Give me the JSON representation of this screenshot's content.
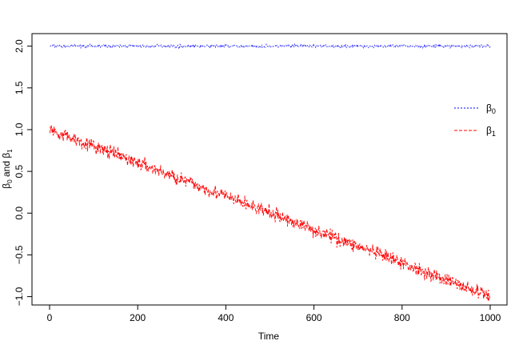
{
  "chart_data": {
    "type": "line",
    "title": "",
    "xlabel": "Time",
    "ylabel": "β0 and β1",
    "xlim": [
      0,
      1000
    ],
    "ylim": [
      -1.1,
      2.15
    ],
    "x_ticks": [
      0,
      200,
      400,
      600,
      800,
      1000
    ],
    "y_ticks": [
      -1.0,
      -0.5,
      0.0,
      0.5,
      1.0,
      1.5,
      2.0
    ],
    "x_tick_labels": [
      "0",
      "200",
      "400",
      "600",
      "800",
      "1000"
    ],
    "y_tick_labels": [
      "−1.0",
      "−0.5",
      "0.0",
      "0.5",
      "1.0",
      "1.5",
      "2.0"
    ],
    "legend_position": "right",
    "grid": false,
    "series": [
      {
        "name": "β0",
        "color": "#0000ff",
        "line_style": "dashed",
        "noise": 0.012,
        "x": [
          1,
          1000
        ],
        "values": [
          2.0,
          2.0
        ]
      },
      {
        "name": "β1",
        "color": "#ff0000",
        "line_style": "dashed",
        "noise": 0.05,
        "x": [
          1,
          1000
        ],
        "values": [
          1.0,
          -1.0
        ]
      }
    ]
  }
}
